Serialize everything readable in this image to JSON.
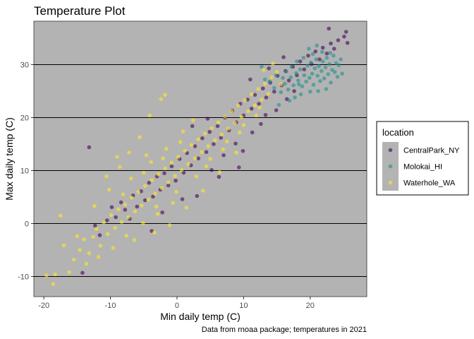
{
  "chart_data": {
    "type": "scatter",
    "title": "Temperature Plot",
    "xlabel": "Min daily temp (C)",
    "ylabel": "Max daily temp (C)",
    "caption": "Data from rnoaa package; temperatures in 2021",
    "xlim": [
      -21.5,
      28.5
    ],
    "ylim": [
      -13.8,
      38.2
    ],
    "x_ticks": [
      -20,
      -10,
      0,
      10,
      20
    ],
    "y_ticks": [
      -10,
      0,
      10,
      20,
      30
    ],
    "grid": "horizontal major lines only",
    "legend_placement": "right",
    "legend_title": "location",
    "panel_background": "#b3b3b3",
    "point_opacity": 0.6,
    "series": [
      {
        "name": "CentralPark_NY",
        "color": "#440154",
        "points": [
          [
            -13.2,
            14.4
          ],
          [
            -12.3,
            -0.4
          ],
          [
            -11.6,
            -2.2
          ],
          [
            -10.5,
            0.6
          ],
          [
            -9.8,
            3.1
          ],
          [
            -9.2,
            1.2
          ],
          [
            -8.4,
            4.0
          ],
          [
            -7.8,
            2.6
          ],
          [
            -7.1,
            0.9
          ],
          [
            -6.6,
            5.3
          ],
          [
            -6.0,
            3.2
          ],
          [
            -5.4,
            6.1
          ],
          [
            -4.8,
            4.4
          ],
          [
            -4.2,
            7.7
          ],
          [
            -3.6,
            5.1
          ],
          [
            -3.0,
            8.9
          ],
          [
            -2.5,
            6.4
          ],
          [
            -1.9,
            9.5
          ],
          [
            -1.3,
            7.2
          ],
          [
            -0.8,
            10.8
          ],
          [
            -0.2,
            8.1
          ],
          [
            0.4,
            12.2
          ],
          [
            1.0,
            9.6
          ],
          [
            1.5,
            13.3
          ],
          [
            2.1,
            11.0
          ],
          [
            2.7,
            14.6
          ],
          [
            3.2,
            12.3
          ],
          [
            3.8,
            16.1
          ],
          [
            4.4,
            13.5
          ],
          [
            4.9,
            17.3
          ],
          [
            5.5,
            15.0
          ],
          [
            6.1,
            18.4
          ],
          [
            6.6,
            16.2
          ],
          [
            7.2,
            20.0
          ],
          [
            7.8,
            17.6
          ],
          [
            8.3,
            21.3
          ],
          [
            8.9,
            19.1
          ],
          [
            9.5,
            22.6
          ],
          [
            10.0,
            20.4
          ],
          [
            10.6,
            23.4
          ],
          [
            11.2,
            21.7
          ],
          [
            11.7,
            24.3
          ],
          [
            12.3,
            22.6
          ],
          [
            12.9,
            25.5
          ],
          [
            13.4,
            23.8
          ],
          [
            14.0,
            26.6
          ],
          [
            14.6,
            24.9
          ],
          [
            15.1,
            27.9
          ],
          [
            15.7,
            26.1
          ],
          [
            16.3,
            28.8
          ],
          [
            16.8,
            27.0
          ],
          [
            17.4,
            29.6
          ],
          [
            18.0,
            28.0
          ],
          [
            18.5,
            30.6
          ],
          [
            19.1,
            29.1
          ],
          [
            19.7,
            31.7
          ],
          [
            20.2,
            30.1
          ],
          [
            20.8,
            32.5
          ],
          [
            21.4,
            31.0
          ],
          [
            21.9,
            33.2
          ],
          [
            22.5,
            32.1
          ],
          [
            23.1,
            34.0
          ],
          [
            23.6,
            33.0
          ],
          [
            24.2,
            34.6
          ],
          [
            25.1,
            35.3
          ],
          [
            25.6,
            34.1
          ],
          [
            25.4,
            36.2
          ],
          [
            22.8,
            36.8
          ],
          [
            -14.2,
            -9.3
          ],
          [
            5.2,
            10.1
          ],
          [
            7.0,
            12.9
          ],
          [
            8.8,
            15.1
          ],
          [
            9.9,
            13.7
          ],
          [
            11.3,
            17.2
          ],
          [
            12.6,
            18.8
          ],
          [
            13.3,
            20.5
          ],
          [
            14.9,
            21.4
          ],
          [
            16.5,
            23.5
          ],
          [
            17.6,
            25.0
          ],
          [
            9.3,
            10.6
          ],
          [
            6.3,
            8.8
          ],
          [
            3.0,
            5.2
          ],
          [
            0.8,
            4.6
          ],
          [
            -2.2,
            2.1
          ],
          [
            4.6,
            19.8
          ],
          [
            2.3,
            18.4
          ],
          [
            11.0,
            27.2
          ],
          [
            13.8,
            29.3
          ],
          [
            16.0,
            31.4
          ],
          [
            -3.8,
            -1.4
          ]
        ]
      },
      {
        "name": "Molokai_HI",
        "color": "#21908c",
        "points": [
          [
            15.6,
            24.8
          ],
          [
            16.2,
            26.4
          ],
          [
            16.7,
            25.3
          ],
          [
            17.1,
            27.6
          ],
          [
            17.5,
            26.1
          ],
          [
            17.9,
            28.4
          ],
          [
            18.2,
            27.0
          ],
          [
            18.5,
            29.1
          ],
          [
            18.8,
            25.9
          ],
          [
            19.1,
            28.0
          ],
          [
            19.4,
            26.8
          ],
          [
            19.6,
            29.8
          ],
          [
            19.9,
            27.5
          ],
          [
            20.1,
            30.4
          ],
          [
            20.3,
            28.3
          ],
          [
            20.5,
            26.2
          ],
          [
            20.7,
            29.3
          ],
          [
            20.9,
            31.0
          ],
          [
            21.1,
            27.9
          ],
          [
            21.3,
            29.7
          ],
          [
            21.5,
            26.9
          ],
          [
            21.7,
            28.8
          ],
          [
            21.9,
            30.6
          ],
          [
            22.1,
            27.4
          ],
          [
            22.3,
            29.5
          ],
          [
            22.5,
            31.3
          ],
          [
            22.7,
            28.2
          ],
          [
            22.9,
            30.1
          ],
          [
            23.1,
            26.6
          ],
          [
            23.3,
            29.0
          ],
          [
            23.5,
            31.7
          ],
          [
            23.7,
            28.6
          ],
          [
            23.9,
            30.3
          ],
          [
            24.1,
            27.7
          ],
          [
            24.3,
            29.9
          ],
          [
            24.6,
            31.0
          ],
          [
            19.0,
            31.3
          ],
          [
            18.0,
            30.6
          ],
          [
            17.2,
            29.6
          ],
          [
            16.4,
            28.7
          ],
          [
            15.9,
            27.5
          ],
          [
            20.4,
            32.0
          ],
          [
            21.8,
            32.4
          ],
          [
            22.4,
            25.4
          ],
          [
            20.0,
            24.9
          ],
          [
            18.6,
            24.4
          ],
          [
            17.7,
            23.8
          ],
          [
            16.9,
            23.2
          ],
          [
            15.3,
            22.4
          ],
          [
            14.6,
            25.6
          ],
          [
            13.9,
            26.8
          ],
          [
            14.9,
            28.0
          ],
          [
            21.2,
            25.0
          ],
          [
            23.0,
            32.2
          ],
          [
            19.8,
            33.0
          ],
          [
            21.0,
            33.6
          ],
          [
            12.7,
            29.6
          ],
          [
            13.2,
            27.2
          ],
          [
            24.8,
            28.3
          ],
          [
            18.3,
            26.3
          ]
        ]
      },
      {
        "name": "Waterhole_WA",
        "color": "#fde725",
        "points": [
          [
            -19.6,
            -9.8
          ],
          [
            -18.6,
            -11.4
          ],
          [
            -18.3,
            -9.6
          ],
          [
            -17.5,
            1.5
          ],
          [
            -17.0,
            -4.1
          ],
          [
            -16.2,
            -9.2
          ],
          [
            -15.5,
            -6.8
          ],
          [
            -14.6,
            -5.0
          ],
          [
            -14.0,
            -3.0
          ],
          [
            -13.2,
            -5.6
          ],
          [
            -12.6,
            -2.5
          ],
          [
            -12.1,
            -1.0
          ],
          [
            -11.5,
            -4.2
          ],
          [
            -11.0,
            0.2
          ],
          [
            -10.4,
            -2.0
          ],
          [
            -9.9,
            1.6
          ],
          [
            -9.3,
            -0.8
          ],
          [
            -8.8,
            2.7
          ],
          [
            -8.3,
            0.3
          ],
          [
            -7.8,
            3.6
          ],
          [
            -7.3,
            1.2
          ],
          [
            -6.8,
            4.9
          ],
          [
            -6.3,
            2.3
          ],
          [
            -5.8,
            6.0
          ],
          [
            -5.3,
            3.4
          ],
          [
            -4.8,
            7.1
          ],
          [
            -4.3,
            4.5
          ],
          [
            -3.8,
            8.2
          ],
          [
            -3.3,
            5.6
          ],
          [
            -2.8,
            9.3
          ],
          [
            -2.3,
            6.7
          ],
          [
            -1.8,
            10.4
          ],
          [
            -1.3,
            7.8
          ],
          [
            -0.8,
            11.5
          ],
          [
            -0.3,
            9.0
          ],
          [
            0.2,
            12.6
          ],
          [
            0.7,
            10.1
          ],
          [
            1.2,
            13.7
          ],
          [
            1.7,
            11.2
          ],
          [
            2.2,
            14.8
          ],
          [
            2.7,
            12.3
          ],
          [
            3.2,
            15.9
          ],
          [
            3.7,
            13.5
          ],
          [
            4.2,
            17.0
          ],
          [
            4.7,
            14.6
          ],
          [
            5.2,
            18.0
          ],
          [
            5.7,
            15.7
          ],
          [
            6.2,
            19.1
          ],
          [
            6.7,
            16.8
          ],
          [
            7.2,
            20.2
          ],
          [
            7.7,
            17.9
          ],
          [
            8.2,
            21.2
          ],
          [
            8.7,
            19.0
          ],
          [
            9.2,
            22.3
          ],
          [
            9.7,
            20.1
          ],
          [
            10.2,
            23.3
          ],
          [
            10.7,
            21.2
          ],
          [
            11.2,
            24.4
          ],
          [
            11.7,
            22.3
          ],
          [
            12.2,
            25.4
          ],
          [
            12.7,
            23.4
          ],
          [
            13.2,
            26.4
          ],
          [
            13.7,
            24.5
          ],
          [
            14.2,
            27.6
          ],
          [
            15.0,
            28.6
          ],
          [
            15.6,
            26.3
          ],
          [
            -2.4,
            23.5
          ],
          [
            -1.8,
            24.3
          ],
          [
            -4.1,
            20.4
          ],
          [
            -5.6,
            16.3
          ],
          [
            -7.2,
            13.4
          ],
          [
            -8.6,
            10.7
          ],
          [
            -10.2,
            6.4
          ],
          [
            -12.4,
            3.3
          ],
          [
            -6.4,
            -3.1
          ],
          [
            -3.4,
            -1.7
          ],
          [
            -1.1,
            -0.3
          ],
          [
            1.4,
            3.0
          ],
          [
            3.9,
            6.2
          ],
          [
            6.4,
            9.7
          ],
          [
            8.9,
            13.4
          ],
          [
            -0.6,
            3.9
          ],
          [
            -2.9,
            1.8
          ],
          [
            -5.1,
            0.1
          ],
          [
            -7.6,
            -2.3
          ],
          [
            -9.6,
            -4.6
          ],
          [
            -3.9,
            11.6
          ],
          [
            -1.6,
            14.1
          ],
          [
            0.9,
            17.4
          ],
          [
            2.4,
            19.5
          ],
          [
            -6.9,
            8.5
          ],
          [
            -4.6,
            12.9
          ],
          [
            -0.1,
            6.0
          ],
          [
            4.4,
            10.8
          ],
          [
            6.9,
            14.0
          ],
          [
            9.4,
            17.2
          ],
          [
            11.9,
            20.4
          ],
          [
            -11.8,
            -6.3
          ],
          [
            -13.6,
            -7.6
          ],
          [
            -8.1,
            5.5
          ],
          [
            -5.0,
            9.6
          ],
          [
            -2.1,
            12.3
          ],
          [
            0.5,
            15.4
          ],
          [
            2.9,
            8.9
          ],
          [
            5.0,
            12.2
          ],
          [
            7.5,
            15.5
          ],
          [
            10.0,
            18.6
          ],
          [
            12.4,
            21.9
          ],
          [
            14.4,
            30.2
          ],
          [
            13.0,
            29.0
          ],
          [
            -9.0,
            12.6
          ],
          [
            -10.6,
            8.9
          ],
          [
            -15.0,
            -2.4
          ],
          [
            -3.1,
            3.2
          ]
        ]
      }
    ]
  }
}
